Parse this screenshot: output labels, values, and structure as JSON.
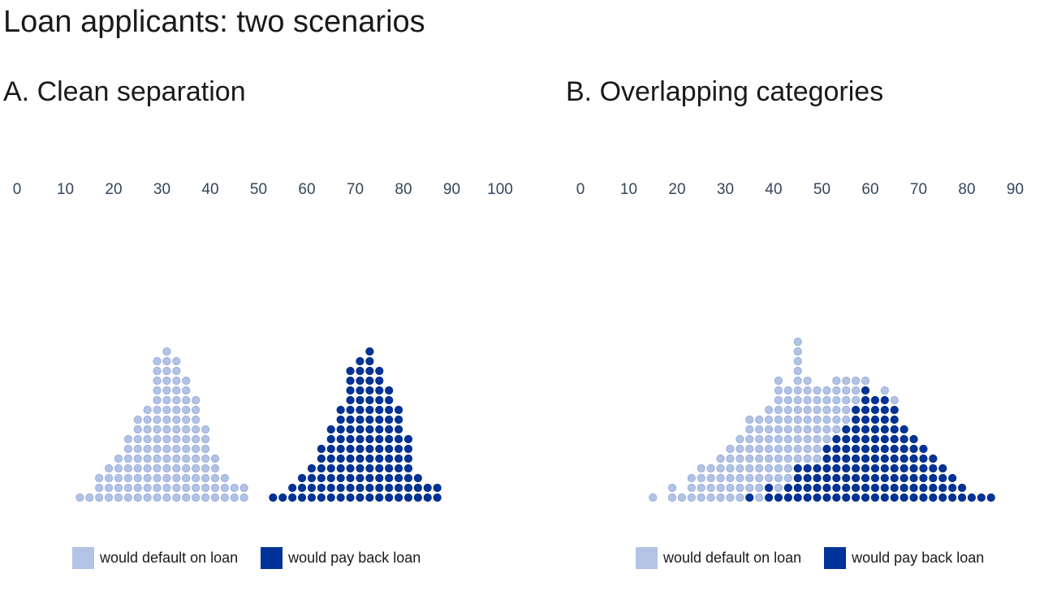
{
  "title": "Loan applicants: two scenarios",
  "colors": {
    "default": "#b3c3e6",
    "default_stroke": "#9aaedc",
    "payback": "#003399",
    "payback_stroke": "#002a80",
    "tick_text": "#33475b"
  },
  "chart_data": [
    {
      "type": "scatter",
      "subtype": "stacked-dot-histogram",
      "title": "A. Clean separation",
      "xlabel": "",
      "ylabel": "",
      "x_ticks": [
        0,
        10,
        20,
        30,
        40,
        50,
        60,
        70,
        80,
        90,
        100
      ],
      "xlim": [
        0,
        100
      ],
      "bin_width": 2,
      "legend": [
        "would default on loan",
        "would pay back loan"
      ],
      "series": [
        {
          "name": "would default on loan",
          "key": "default",
          "x": [
            13,
            15,
            17,
            19,
            21,
            23,
            25,
            27,
            29,
            31,
            33,
            35,
            37,
            39,
            41,
            43,
            45,
            47
          ],
          "counts": [
            1,
            1,
            3,
            4,
            5,
            7,
            9,
            10,
            15,
            16,
            15,
            13,
            11,
            8,
            5,
            3,
            2,
            2
          ]
        },
        {
          "name": "would pay back loan",
          "key": "payback",
          "x": [
            53,
            55,
            57,
            59,
            61,
            63,
            65,
            67,
            69,
            71,
            73,
            75,
            77,
            79,
            81,
            83,
            85,
            87
          ],
          "counts": [
            1,
            1,
            2,
            3,
            4,
            6,
            8,
            10,
            14,
            15,
            16,
            14,
            12,
            10,
            7,
            3,
            2,
            2
          ]
        }
      ]
    },
    {
      "type": "scatter",
      "subtype": "stacked-dot-histogram",
      "title": "B. Overlapping categories",
      "xlabel": "",
      "ylabel": "",
      "x_ticks": [
        0,
        10,
        20,
        30,
        40,
        50,
        60,
        70,
        80,
        90
      ],
      "xlim": [
        0,
        90
      ],
      "bin_width": 2,
      "legend": [
        "would default on loan",
        "would pay back loan"
      ],
      "series": [
        {
          "name": "would default on loan",
          "key": "default",
          "x": [
            15,
            19,
            21,
            23,
            25,
            27,
            29,
            31,
            33,
            35,
            37,
            39,
            41,
            43,
            45,
            47,
            49,
            51,
            53,
            55,
            57,
            59,
            61,
            63,
            65
          ],
          "counts": [
            1,
            2,
            1,
            3,
            4,
            4,
            5,
            6,
            7,
            8,
            9,
            8,
            12,
            10,
            13,
            9,
            8,
            6,
            6,
            5,
            3,
            1,
            0,
            1,
            1
          ]
        },
        {
          "name": "would pay back loan",
          "key": "payback",
          "x": [
            35,
            39,
            41,
            43,
            45,
            47,
            49,
            51,
            53,
            55,
            57,
            59,
            61,
            63,
            65,
            67,
            69,
            71,
            73,
            75,
            77,
            79,
            81,
            83,
            85
          ],
          "counts": [
            1,
            2,
            1,
            2,
            4,
            4,
            4,
            6,
            7,
            8,
            10,
            12,
            11,
            11,
            10,
            8,
            7,
            6,
            5,
            4,
            3,
            2,
            1,
            1,
            1
          ]
        }
      ]
    }
  ]
}
